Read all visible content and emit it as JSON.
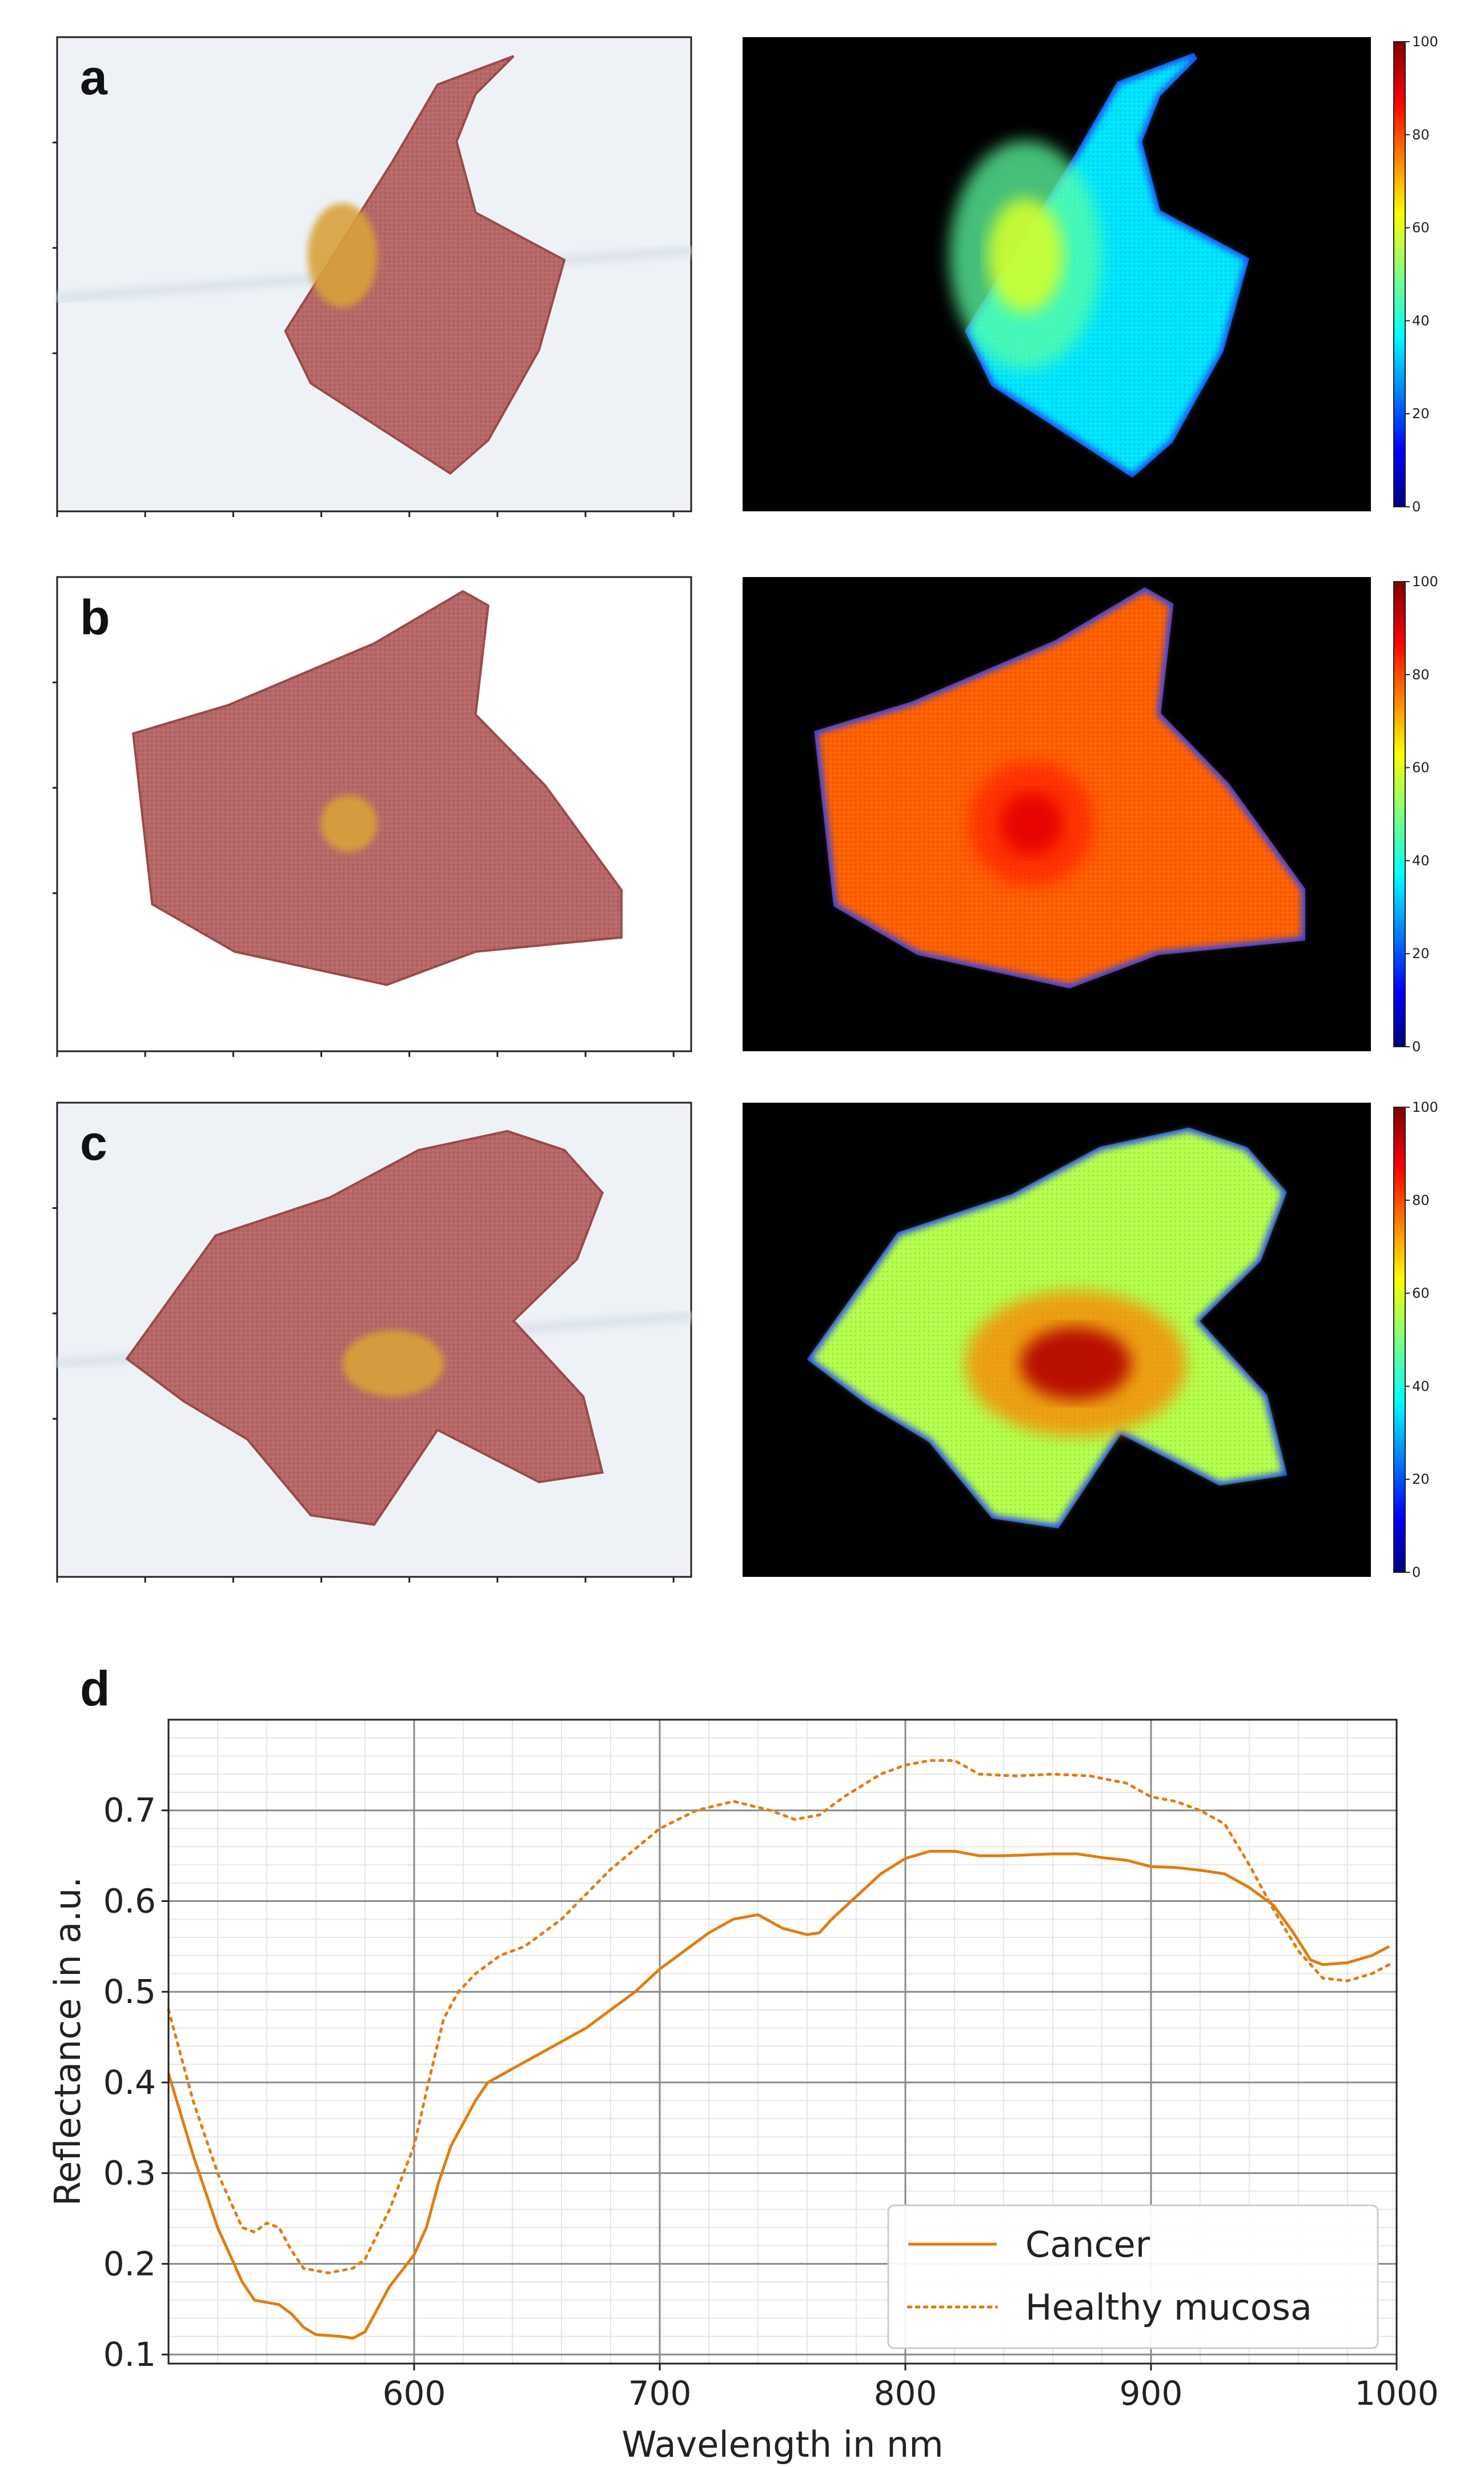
{
  "colors": {
    "cancer": "#e07d10",
    "healthy": "#e07d10",
    "tissue": "#b86868",
    "tumor": "#d9a23a",
    "background_photo": "#eef2f6",
    "hsi_background": "#000000"
  },
  "panels": [
    {
      "id": "a",
      "label": "a",
      "colorbar_ticks": [
        "100",
        "80",
        "60",
        "40",
        "20",
        "0"
      ],
      "tumor_level": 0.58,
      "tissue_level": 0.35
    },
    {
      "id": "b",
      "label": "b",
      "colorbar_ticks": [
        "100",
        "80",
        "60",
        "40",
        "20",
        "0"
      ],
      "tumor_level": 0.9,
      "tissue_level": 0.78
    },
    {
      "id": "c",
      "label": "c",
      "colorbar_ticks": [
        "100",
        "80",
        "60",
        "40",
        "20",
        "0"
      ],
      "tumor_level": 0.95,
      "tissue_level": 0.55
    }
  ],
  "chart_data": {
    "type": "line",
    "label": "d",
    "title": "",
    "xlabel": "Wavelength in nm",
    "ylabel": "Reflectance in a.u.",
    "xlim": [
      500,
      1000
    ],
    "ylim": [
      0.09,
      0.8
    ],
    "x_ticks": [
      600,
      700,
      800,
      900,
      1000
    ],
    "y_ticks": [
      0.1,
      0.2,
      0.3,
      0.4,
      0.5,
      0.6,
      0.7
    ],
    "y_tick_labels": [
      "0.1",
      "0.2",
      "0.3",
      "0.4",
      "0.5",
      "0.6",
      "0.7"
    ],
    "x_tick_labels": [
      "600",
      "700",
      "800",
      "900",
      "1000"
    ],
    "grid": true,
    "legend_position": "bottom-right",
    "series": [
      {
        "name": "Cancer",
        "style": "solid",
        "points": [
          [
            500,
            0.41
          ],
          [
            510,
            0.32
          ],
          [
            520,
            0.24
          ],
          [
            530,
            0.18
          ],
          [
            535,
            0.16
          ],
          [
            545,
            0.155
          ],
          [
            550,
            0.145
          ],
          [
            555,
            0.13
          ],
          [
            560,
            0.122
          ],
          [
            570,
            0.12
          ],
          [
            575,
            0.118
          ],
          [
            580,
            0.125
          ],
          [
            590,
            0.175
          ],
          [
            600,
            0.21
          ],
          [
            605,
            0.24
          ],
          [
            610,
            0.29
          ],
          [
            615,
            0.33
          ],
          [
            625,
            0.38
          ],
          [
            630,
            0.4
          ],
          [
            640,
            0.415
          ],
          [
            650,
            0.43
          ],
          [
            660,
            0.445
          ],
          [
            670,
            0.46
          ],
          [
            680,
            0.48
          ],
          [
            690,
            0.5
          ],
          [
            700,
            0.525
          ],
          [
            710,
            0.545
          ],
          [
            720,
            0.565
          ],
          [
            730,
            0.58
          ],
          [
            740,
            0.585
          ],
          [
            750,
            0.57
          ],
          [
            760,
            0.563
          ],
          [
            765,
            0.565
          ],
          [
            770,
            0.58
          ],
          [
            780,
            0.605
          ],
          [
            790,
            0.63
          ],
          [
            800,
            0.647
          ],
          [
            810,
            0.655
          ],
          [
            820,
            0.655
          ],
          [
            830,
            0.65
          ],
          [
            840,
            0.65
          ],
          [
            860,
            0.652
          ],
          [
            870,
            0.652
          ],
          [
            880,
            0.648
          ],
          [
            890,
            0.645
          ],
          [
            900,
            0.638
          ],
          [
            910,
            0.637
          ],
          [
            920,
            0.634
          ],
          [
            930,
            0.63
          ],
          [
            940,
            0.615
          ],
          [
            950,
            0.595
          ],
          [
            958,
            0.565
          ],
          [
            965,
            0.535
          ],
          [
            970,
            0.53
          ],
          [
            980,
            0.532
          ],
          [
            990,
            0.54
          ],
          [
            997,
            0.55
          ]
        ]
      },
      {
        "name": "Healthy mucosa",
        "style": "dotted",
        "points": [
          [
            500,
            0.48
          ],
          [
            510,
            0.38
          ],
          [
            520,
            0.3
          ],
          [
            530,
            0.24
          ],
          [
            535,
            0.235
          ],
          [
            540,
            0.245
          ],
          [
            545,
            0.24
          ],
          [
            550,
            0.215
          ],
          [
            555,
            0.195
          ],
          [
            565,
            0.19
          ],
          [
            575,
            0.195
          ],
          [
            580,
            0.205
          ],
          [
            590,
            0.26
          ],
          [
            600,
            0.33
          ],
          [
            605,
            0.39
          ],
          [
            612,
            0.47
          ],
          [
            618,
            0.5
          ],
          [
            625,
            0.52
          ],
          [
            635,
            0.54
          ],
          [
            645,
            0.55
          ],
          [
            660,
            0.58
          ],
          [
            680,
            0.635
          ],
          [
            700,
            0.68
          ],
          [
            715,
            0.7
          ],
          [
            730,
            0.71
          ],
          [
            745,
            0.7
          ],
          [
            755,
            0.69
          ],
          [
            765,
            0.695
          ],
          [
            775,
            0.715
          ],
          [
            790,
            0.74
          ],
          [
            800,
            0.75
          ],
          [
            810,
            0.755
          ],
          [
            820,
            0.755
          ],
          [
            830,
            0.74
          ],
          [
            845,
            0.738
          ],
          [
            860,
            0.74
          ],
          [
            875,
            0.738
          ],
          [
            890,
            0.73
          ],
          [
            900,
            0.715
          ],
          [
            910,
            0.71
          ],
          [
            920,
            0.7
          ],
          [
            930,
            0.685
          ],
          [
            940,
            0.64
          ],
          [
            950,
            0.59
          ],
          [
            960,
            0.545
          ],
          [
            970,
            0.515
          ],
          [
            980,
            0.512
          ],
          [
            990,
            0.52
          ],
          [
            997,
            0.53
          ]
        ]
      }
    ]
  }
}
